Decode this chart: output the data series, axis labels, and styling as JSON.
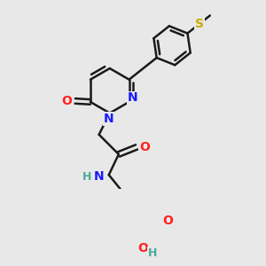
{
  "bg_color": "#e8e8e8",
  "bond_color": "#1a1a1a",
  "bond_width": 1.8,
  "atom_colors": {
    "N": "#1a1aff",
    "O": "#ff2020",
    "S": "#ccaa00",
    "H_N": "#4aaa99",
    "H_O": "#4aaa99",
    "C": "#1a1a1a"
  },
  "font_size": 10,
  "figsize": [
    3.0,
    3.0
  ],
  "dpi": 100
}
